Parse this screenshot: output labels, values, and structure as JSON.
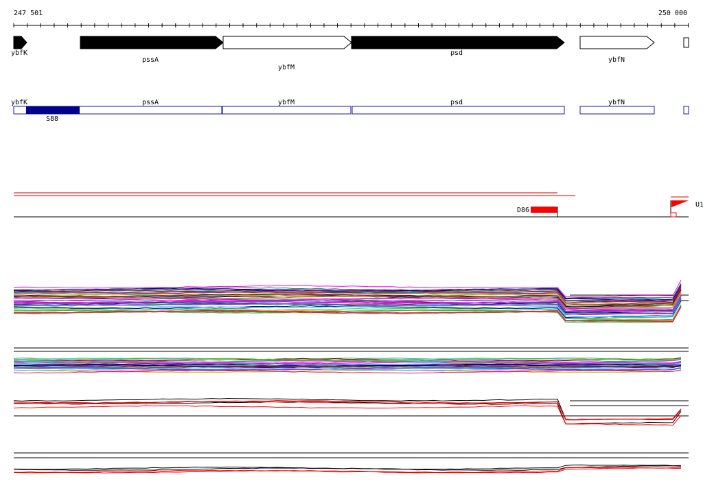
{
  "ruler": {
    "start": "247 501",
    "end": "250 000"
  },
  "genes": [
    "ybfK",
    "pssA",
    "ybfM",
    "psd",
    "ybfN"
  ],
  "gene_boxes": [
    "ybfK",
    "pssA",
    "ybfM",
    "psd",
    "ybfN"
  ],
  "regions": [
    "S88",
    "D86",
    "U1"
  ]
}
